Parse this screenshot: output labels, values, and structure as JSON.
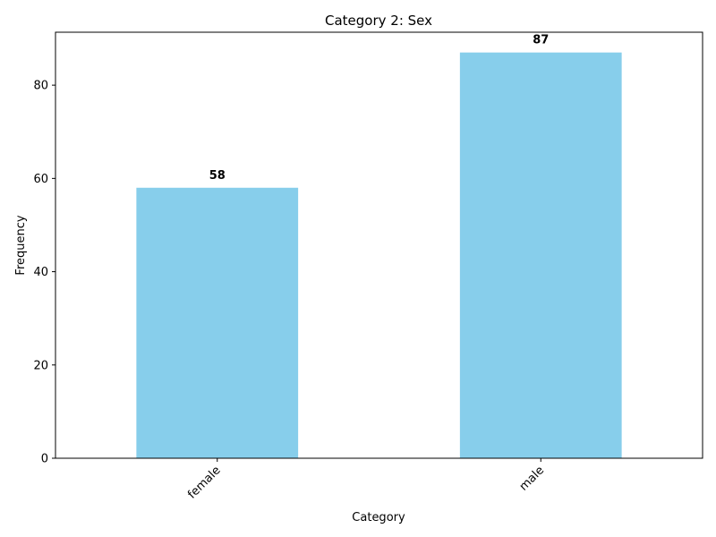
{
  "chart_data": {
    "type": "bar",
    "title": "Category 2: Sex",
    "xlabel": "Category",
    "ylabel": "Frequency",
    "categories": [
      "female",
      "male"
    ],
    "values": [
      58,
      87
    ],
    "ylim": [
      0,
      91.35
    ],
    "yticks": [
      0,
      20,
      40,
      60,
      80
    ],
    "grid": false,
    "bar_color": "#87CEEB",
    "x_tick_rotation_deg": 45
  }
}
